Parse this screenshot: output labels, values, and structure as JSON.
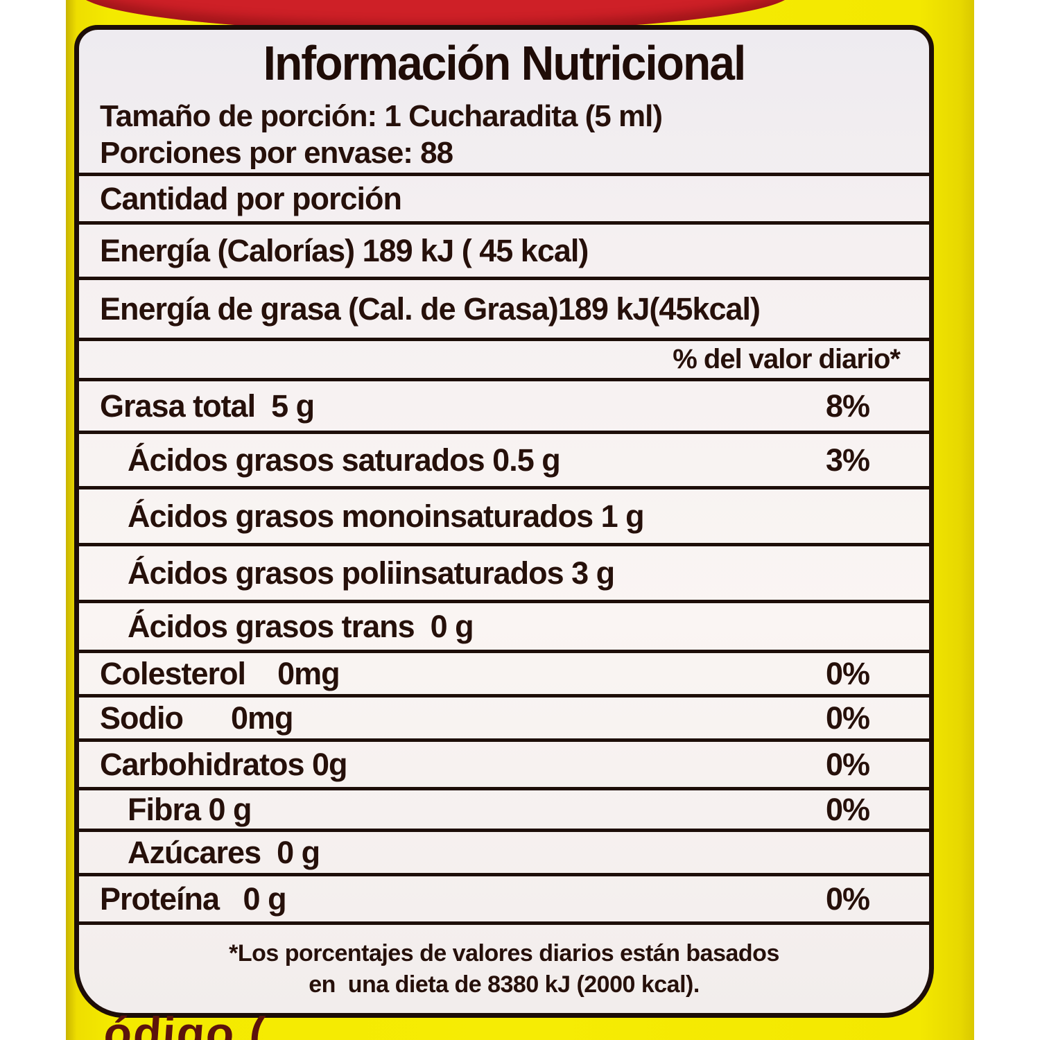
{
  "photo": {
    "backdrop_color": "#ffffff",
    "label_color": "#f4ea00",
    "red_band_color": "#ce2027",
    "bottom_clipped_text": "ódigo (",
    "bottom_clipped_text_right": ")"
  },
  "panel": {
    "bg_color": "#f7f2f1",
    "border_color": "#1d0d08",
    "text_color": "#26100a",
    "title": "Información Nutricional",
    "serving_lines": [
      "Tamaño de porción: 1 Cucharadita (5 ml)",
      "Porciones por envase: 88"
    ],
    "rows": [
      {
        "text": "Cantidad por porción",
        "type": "section"
      },
      {
        "text": "Energía (Calorías) 189 kJ ( 45 kcal)",
        "type": "section"
      },
      {
        "text": "Energía de grasa (Cal. de Grasa)189 kJ(45kcal)",
        "type": "section"
      },
      {
        "text": "",
        "dv": "% del valor diario*",
        "type": "dv-header"
      },
      {
        "text": "Grasa total  5 g",
        "dv": "8%"
      },
      {
        "text": "Ácidos grasos saturados 0.5 g",
        "dv": "3%",
        "indent": true
      },
      {
        "text": "Ácidos grasos monoinsaturados 1 g",
        "indent": true
      },
      {
        "text": "Ácidos grasos poliinsaturados 3 g",
        "indent": true
      },
      {
        "text": "Ácidos grasos trans  0 g",
        "indent": true
      },
      {
        "text": "Colesterol    0mg",
        "dv": "0%"
      },
      {
        "text": "Sodio      0mg",
        "dv": "0%"
      },
      {
        "text": "Carbohidratos 0g",
        "dv": "0%"
      },
      {
        "text": "Fibra 0 g",
        "dv": "0%",
        "indent": true
      },
      {
        "text": "Azúcares  0 g",
        "indent": true
      },
      {
        "text": "Proteína   0 g",
        "dv": "0%"
      }
    ],
    "footnote_lines": [
      "*Los porcentajes de valores diarios están basados",
      "en  una dieta de 8380 kJ (2000 kcal)."
    ]
  }
}
